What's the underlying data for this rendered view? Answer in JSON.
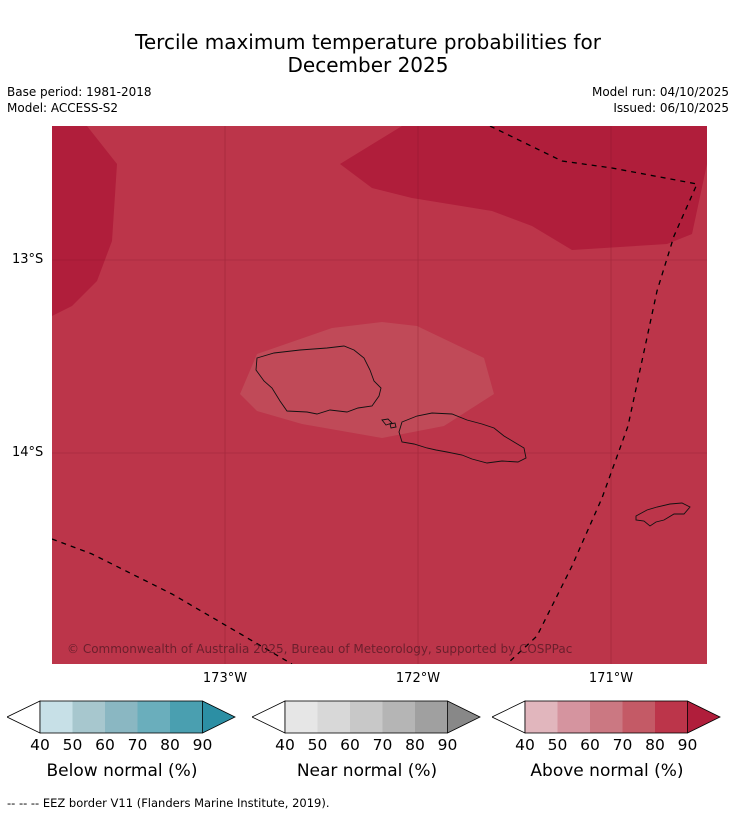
{
  "title": {
    "line1": "Tercile maximum temperature probabilities for",
    "line2": "December 2025"
  },
  "meta": {
    "base_period": "Base period: 1981-2018",
    "model": "Model: ACCESS-S2",
    "model_run": "Model run: 04/10/2025",
    "issued": "Issued: 06/10/2025"
  },
  "map": {
    "lat_labels": [
      "13°S",
      "14°S"
    ],
    "lon_labels": [
      "173°W",
      "172°W",
      "171°W"
    ],
    "copyright": "© Commonwealth of Australia 2025, Bureau of Meteorology, supported by COSPPac",
    "colors": {
      "base": "#bc354a",
      "high": "#b01e3b",
      "lower": "#c04a58"
    }
  },
  "legends": [
    {
      "title": "Below normal (%)",
      "ticks": [
        "40",
        "50",
        "60",
        "70",
        "80",
        "90"
      ],
      "colors": [
        "#c7e0e7",
        "#a7c7ce",
        "#8ab7c2",
        "#6aaebc",
        "#4a9fb0",
        "#2c8fa4"
      ]
    },
    {
      "title": "Near normal (%)",
      "ticks": [
        "40",
        "50",
        "60",
        "70",
        "80",
        "90"
      ],
      "colors": [
        "#e6e6e6",
        "#d8d8d8",
        "#c8c8c8",
        "#b5b5b5",
        "#a0a0a0",
        "#888888"
      ]
    },
    {
      "title": "Above normal (%)",
      "ticks": [
        "40",
        "50",
        "60",
        "70",
        "80",
        "90"
      ],
      "colors": [
        "#e1b6bd",
        "#d5949f",
        "#cb7882",
        "#c45a66",
        "#bc354a",
        "#b01e3b"
      ]
    }
  ],
  "footnote": "--  --  -- EEZ border V11 (Flanders Marine Institute, 2019)."
}
